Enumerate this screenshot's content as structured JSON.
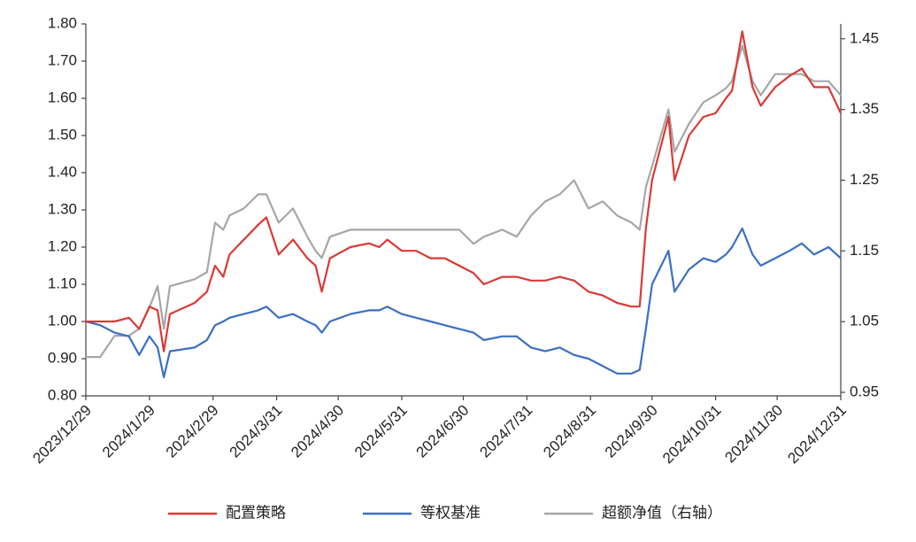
{
  "chart_data": {
    "type": "line",
    "x": [
      "2023/12/29",
      "2024/1/5",
      "2024/1/12",
      "2024/1/19",
      "2024/1/24",
      "2024/1/29",
      "2024/2/2",
      "2024/2/5",
      "2024/2/8",
      "2024/2/20",
      "2024/2/26",
      "2024/3/1",
      "2024/3/5",
      "2024/3/8",
      "2024/3/15",
      "2024/3/22",
      "2024/3/26",
      "2024/4/1",
      "2024/4/8",
      "2024/4/15",
      "2024/4/19",
      "2024/4/22",
      "2024/4/26",
      "2024/5/6",
      "2024/5/15",
      "2024/5/20",
      "2024/5/24",
      "2024/5/31",
      "2024/6/7",
      "2024/6/14",
      "2024/6/21",
      "2024/6/28",
      "2024/7/5",
      "2024/7/10",
      "2024/7/19",
      "2024/7/26",
      "2024/8/2",
      "2024/8/9",
      "2024/8/16",
      "2024/8/23",
      "2024/8/30",
      "2024/9/6",
      "2024/9/13",
      "2024/9/20",
      "2024/9/24",
      "2024/9/27",
      "2024/9/30",
      "2024/10/8",
      "2024/10/11",
      "2024/10/18",
      "2024/10/25",
      "2024/10/31",
      "2024/11/5",
      "2024/11/8",
      "2024/11/13",
      "2024/11/18",
      "2024/11/22",
      "2024/11/29",
      "2024/12/6",
      "2024/12/12",
      "2024/12/18",
      "2024/12/25",
      "2024/12/31"
    ],
    "series": [
      {
        "name": "配置策略",
        "color": "#d93a35",
        "values": [
          1.0,
          1.0,
          1.0,
          1.01,
          0.98,
          1.04,
          1.03,
          0.92,
          1.02,
          1.05,
          1.08,
          1.15,
          1.12,
          1.18,
          1.22,
          1.26,
          1.28,
          1.18,
          1.22,
          1.17,
          1.15,
          1.08,
          1.17,
          1.2,
          1.21,
          1.2,
          1.22,
          1.19,
          1.19,
          1.17,
          1.17,
          1.15,
          1.13,
          1.1,
          1.12,
          1.12,
          1.11,
          1.11,
          1.12,
          1.11,
          1.08,
          1.07,
          1.05,
          1.04,
          1.04,
          1.25,
          1.38,
          1.55,
          1.38,
          1.5,
          1.55,
          1.56,
          1.6,
          1.62,
          1.78,
          1.63,
          1.58,
          1.63,
          1.66,
          1.68,
          1.63,
          1.63,
          1.56
        ]
      },
      {
        "name": "等权基准",
        "color": "#3b6fc4",
        "values": [
          1.0,
          0.99,
          0.97,
          0.96,
          0.91,
          0.96,
          0.93,
          0.85,
          0.92,
          0.93,
          0.95,
          0.99,
          1.0,
          1.01,
          1.02,
          1.03,
          1.04,
          1.01,
          1.02,
          1.0,
          0.99,
          0.97,
          1.0,
          1.02,
          1.03,
          1.03,
          1.04,
          1.02,
          1.01,
          1.0,
          0.99,
          0.98,
          0.97,
          0.95,
          0.96,
          0.96,
          0.93,
          0.92,
          0.93,
          0.91,
          0.9,
          0.88,
          0.86,
          0.86,
          0.87,
          0.98,
          1.1,
          1.19,
          1.08,
          1.14,
          1.17,
          1.16,
          1.18,
          1.2,
          1.25,
          1.18,
          1.15,
          1.17,
          1.19,
          1.21,
          1.18,
          1.2,
          1.17
        ]
      },
      {
        "name": "超额净值（右轴）",
        "color": "#a6a6a6",
        "axis": "y2",
        "values": [
          1.0,
          1.0,
          1.03,
          1.03,
          1.04,
          1.07,
          1.1,
          1.04,
          1.1,
          1.11,
          1.12,
          1.19,
          1.18,
          1.2,
          1.21,
          1.23,
          1.23,
          1.19,
          1.21,
          1.17,
          1.15,
          1.14,
          1.17,
          1.18,
          1.18,
          1.18,
          1.18,
          1.18,
          1.18,
          1.18,
          1.18,
          1.18,
          1.16,
          1.17,
          1.18,
          1.17,
          1.2,
          1.22,
          1.23,
          1.25,
          1.21,
          1.22,
          1.2,
          1.19,
          1.18,
          1.24,
          1.27,
          1.35,
          1.29,
          1.33,
          1.36,
          1.37,
          1.38,
          1.39,
          1.44,
          1.39,
          1.37,
          1.4,
          1.4,
          1.4,
          1.39,
          1.39,
          1.37
        ]
      }
    ],
    "xlim": [
      "2023/12/29",
      "2024/12/31"
    ],
    "xticks": [
      "2023/12/29",
      "2024/1/29",
      "2024/2/29",
      "2024/3/31",
      "2024/4/30",
      "2024/5/31",
      "2024/6/30",
      "2024/7/31",
      "2024/8/31",
      "2024/9/30",
      "2024/10/31",
      "2024/11/30",
      "2024/12/31"
    ],
    "ylim": [
      0.8,
      1.8
    ],
    "yticks": [
      {
        "value": 0.8,
        "label": "0.80"
      },
      {
        "value": 0.9,
        "label": "0.90"
      },
      {
        "value": 1.0,
        "label": "1.00"
      },
      {
        "value": 1.1,
        "label": "1.10"
      },
      {
        "value": 1.2,
        "label": "1.20"
      },
      {
        "value": 1.3,
        "label": "1.30"
      },
      {
        "value": 1.4,
        "label": "1.40"
      },
      {
        "value": 1.5,
        "label": "1.50"
      },
      {
        "value": 1.6,
        "label": "1.60"
      },
      {
        "value": 1.7,
        "label": "1.70"
      },
      {
        "value": 1.8,
        "label": "1.80"
      }
    ],
    "y2lim": [
      0.945,
      1.471
    ],
    "y2ticks": [
      0.95,
      1.05,
      1.15,
      1.25,
      1.35,
      1.45
    ],
    "grid": false,
    "legend": "bottom"
  }
}
